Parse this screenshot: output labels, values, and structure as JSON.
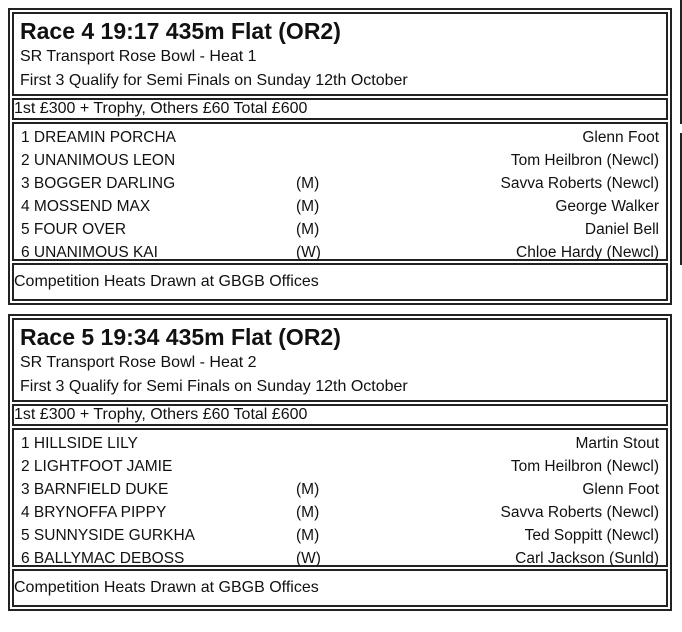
{
  "races": [
    {
      "title": "Race 4 19:17 435m Flat (OR2)",
      "subtitle": "SR Transport Rose Bowl - Heat 1",
      "note": "First 3 Qualify for Semi Finals on Sunday 12th October",
      "prize": "1st £300 + Trophy, Others £60 Total £600",
      "runners": [
        {
          "name": "1 DREAMIN PORCHA",
          "tag": "",
          "trainer": "Glenn Foot"
        },
        {
          "name": "2 UNANIMOUS LEON",
          "tag": "",
          "trainer": "Tom Heilbron (Newcl)"
        },
        {
          "name": "3 BOGGER DARLING",
          "tag": "(M)",
          "trainer": "Savva Roberts (Newcl)"
        },
        {
          "name": "4 MOSSEND MAX",
          "tag": "(M)",
          "trainer": "George Walker"
        },
        {
          "name": "5 FOUR OVER",
          "tag": "(M)",
          "trainer": "Daniel Bell"
        },
        {
          "name": "6 UNANIMOUS KAI",
          "tag": "(W)",
          "trainer": "Chloe Hardy (Newcl)"
        }
      ],
      "footer": "Competition Heats Drawn at GBGB Offices"
    },
    {
      "title": "Race 5 19:34 435m Flat (OR2)",
      "subtitle": "SR Transport Rose Bowl - Heat 2",
      "note": "First 3 Qualify for Semi Finals on Sunday 12th October",
      "prize": "1st £300 + Trophy, Others £60 Total £600",
      "runners": [
        {
          "name": "1 HILLSIDE LILY",
          "tag": "",
          "trainer": "Martin Stout"
        },
        {
          "name": "2 LIGHTFOOT JAMIE",
          "tag": "",
          "trainer": "Tom Heilbron (Newcl)"
        },
        {
          "name": "3 BARNFIELD DUKE",
          "tag": "(M)",
          "trainer": "Glenn Foot"
        },
        {
          "name": "4 BRYNOFFA PIPPY",
          "tag": "(M)",
          "trainer": "Savva Roberts (Newcl)"
        },
        {
          "name": "5 SUNNYSIDE GURKHA",
          "tag": "(M)",
          "trainer": "Ted Soppitt (Newcl)"
        },
        {
          "name": "6 BALLYMAC DEBOSS",
          "tag": "(W)",
          "trainer": "Carl Jackson (Sunld)"
        }
      ],
      "footer": "Competition Heats Drawn at GBGB Offices"
    }
  ]
}
